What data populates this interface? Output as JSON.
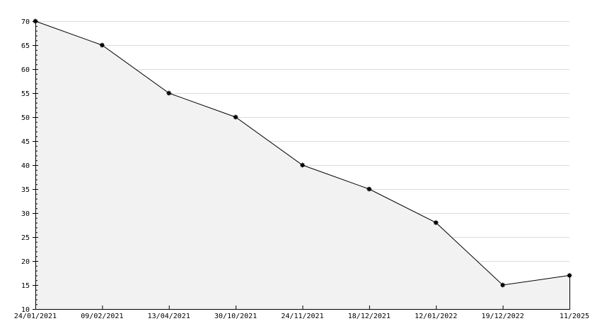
{
  "chart_data": {
    "type": "area",
    "title": "",
    "xlabel": "",
    "ylabel": "",
    "categories": [
      "24/01/2021",
      "09/02/2021",
      "13/04/2021",
      "30/10/2021",
      "24/11/2021",
      "18/12/2021",
      "12/01/2022",
      "19/12/2022",
      "11/2025"
    ],
    "values": [
      70,
      65,
      55,
      50,
      40,
      35,
      28,
      15,
      17
    ],
    "ylim": [
      10,
      70
    ],
    "yticks": [
      10,
      15,
      20,
      25,
      30,
      35,
      40,
      45,
      50,
      55,
      60,
      65,
      70
    ],
    "grid": true,
    "legend": "none",
    "colors": {
      "line": "#000000",
      "fill": "#f2f2f2",
      "grid": "#dddddd",
      "marker": "#000000"
    }
  }
}
